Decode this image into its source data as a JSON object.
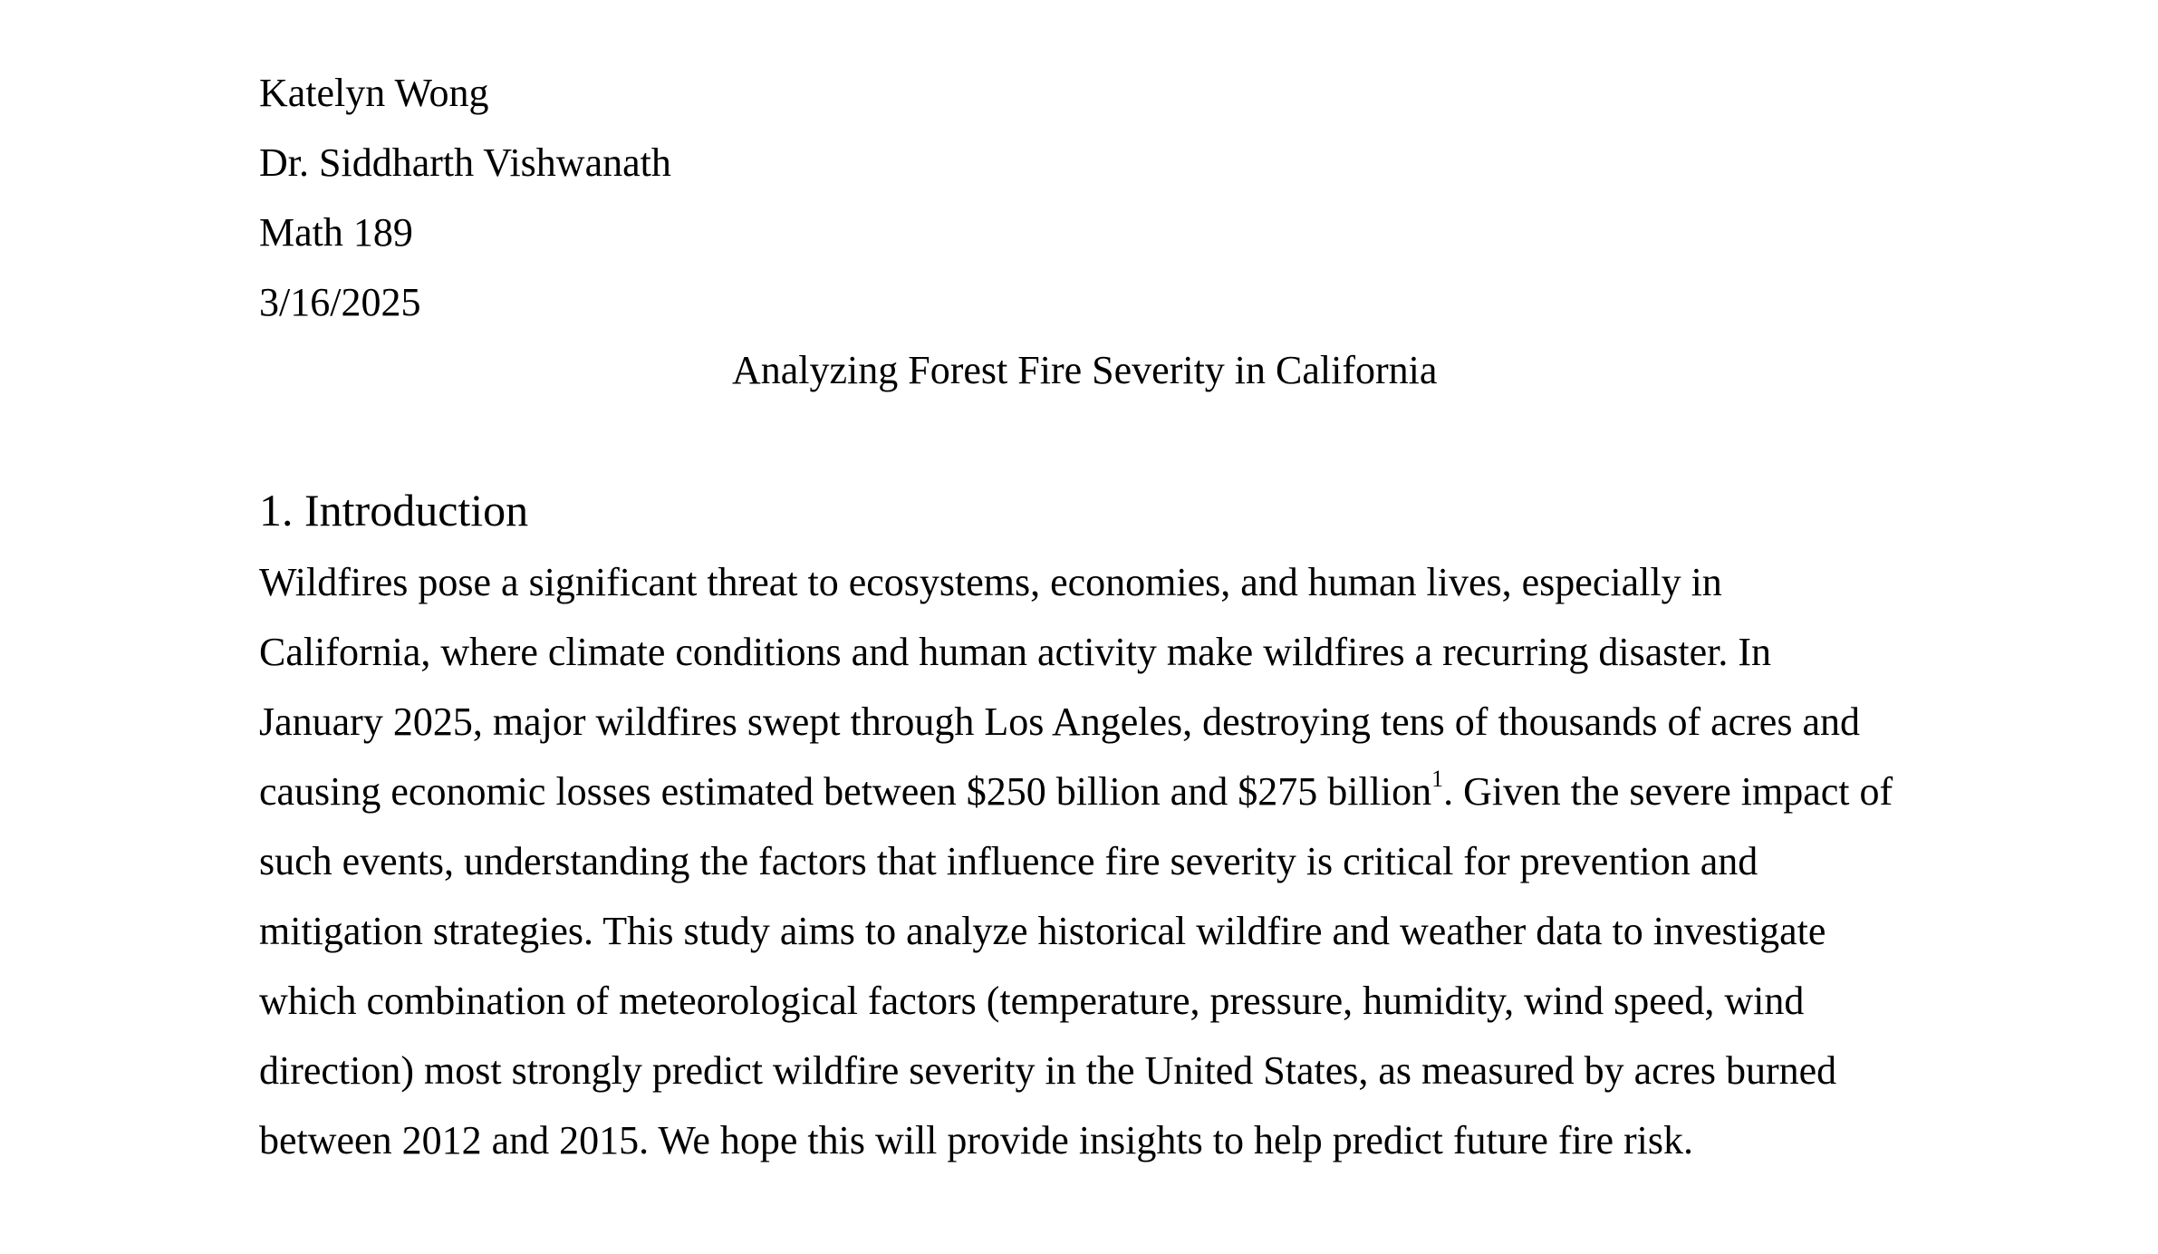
{
  "header": {
    "author": "Katelyn Wong",
    "instructor": "Dr. Siddharth Vishwanath",
    "course": "Math 189",
    "date": "3/16/2025"
  },
  "title": "Analyzing Forest Fire Severity in California",
  "section": {
    "heading": "1. Introduction",
    "lines": [
      "Wildfires pose a significant threat to ecosystems, economies, and human lives, especially in",
      "California, where climate conditions and human activity make wildfires a recurring disaster. In",
      "January 2025, major wildfires swept through Los Angeles, destroying tens of thousands of acres and",
      "causing economic losses estimated between $250 billion and $275 billion",
      "such events, understanding the factors that influence fire severity is critical for prevention and",
      "mitigation strategies. This study aims to analyze historical wildfire and weather data to investigate",
      "which combination of meteorological factors (temperature, pressure, humidity, wind speed, wind",
      "direction) most strongly predict wildfire severity in the United States, as measured by acres burned",
      "between 2012 and 2015. We hope this will provide insights to help predict future fire risk."
    ],
    "footnote_marker": "1",
    "line4_tail": ". Given the severe impact of"
  }
}
